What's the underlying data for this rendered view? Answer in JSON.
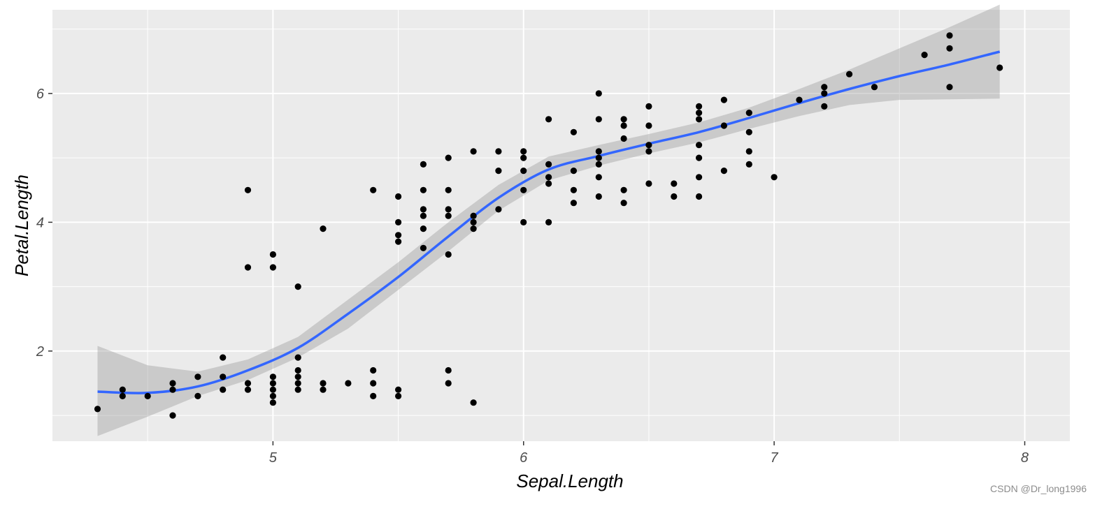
{
  "chart_data": {
    "type": "scatter",
    "xlabel": "Sepal.Length",
    "ylabel": "Petal.Length",
    "xlim": [
      4.12,
      8.18
    ],
    "ylim": [
      0.6,
      7.3
    ],
    "x_ticks": [
      5,
      6,
      7,
      8
    ],
    "y_ticks": [
      2,
      4,
      6
    ],
    "grid": true,
    "colors": {
      "panel": "#ebebeb",
      "grid": "#ffffff",
      "points": "#000000",
      "smooth": "#3366ff",
      "band": "#c6c6c6"
    },
    "points": [
      [
        4.3,
        1.1
      ],
      [
        4.4,
        1.3
      ],
      [
        4.4,
        1.4
      ],
      [
        4.5,
        1.3
      ],
      [
        4.6,
        1.0
      ],
      [
        4.6,
        1.4
      ],
      [
        4.6,
        1.5
      ],
      [
        4.7,
        1.3
      ],
      [
        4.7,
        1.6
      ],
      [
        4.8,
        1.4
      ],
      [
        4.8,
        1.6
      ],
      [
        4.8,
        1.9
      ],
      [
        4.9,
        1.4
      ],
      [
        4.9,
        1.5
      ],
      [
        4.9,
        3.3
      ],
      [
        4.9,
        4.5
      ],
      [
        5.0,
        1.2
      ],
      [
        5.0,
        1.3
      ],
      [
        5.0,
        1.4
      ],
      [
        5.0,
        1.5
      ],
      [
        5.0,
        1.6
      ],
      [
        5.0,
        3.3
      ],
      [
        5.0,
        3.5
      ],
      [
        5.1,
        1.4
      ],
      [
        5.1,
        1.5
      ],
      [
        5.1,
        1.6
      ],
      [
        5.1,
        1.7
      ],
      [
        5.1,
        1.9
      ],
      [
        5.1,
        3.0
      ],
      [
        5.2,
        1.4
      ],
      [
        5.2,
        1.5
      ],
      [
        5.2,
        3.9
      ],
      [
        5.3,
        1.5
      ],
      [
        5.4,
        1.3
      ],
      [
        5.4,
        1.5
      ],
      [
        5.4,
        1.7
      ],
      [
        5.4,
        4.5
      ],
      [
        5.5,
        1.3
      ],
      [
        5.5,
        1.4
      ],
      [
        5.5,
        3.7
      ],
      [
        5.5,
        3.8
      ],
      [
        5.5,
        4.0
      ],
      [
        5.5,
        4.4
      ],
      [
        5.6,
        3.6
      ],
      [
        5.6,
        3.9
      ],
      [
        5.6,
        4.1
      ],
      [
        5.6,
        4.2
      ],
      [
        5.6,
        4.5
      ],
      [
        5.6,
        4.9
      ],
      [
        5.7,
        1.5
      ],
      [
        5.7,
        1.7
      ],
      [
        5.7,
        3.5
      ],
      [
        5.7,
        4.1
      ],
      [
        5.7,
        4.2
      ],
      [
        5.7,
        4.5
      ],
      [
        5.7,
        5.0
      ],
      [
        5.8,
        1.2
      ],
      [
        5.8,
        3.9
      ],
      [
        5.8,
        4.0
      ],
      [
        5.8,
        4.1
      ],
      [
        5.8,
        5.1
      ],
      [
        5.9,
        4.2
      ],
      [
        5.9,
        4.8
      ],
      [
        5.9,
        5.1
      ],
      [
        6.0,
        4.0
      ],
      [
        6.0,
        4.5
      ],
      [
        6.0,
        4.8
      ],
      [
        6.0,
        5.0
      ],
      [
        6.0,
        5.1
      ],
      [
        6.1,
        4.0
      ],
      [
        6.1,
        4.6
      ],
      [
        6.1,
        4.7
      ],
      [
        6.1,
        4.9
      ],
      [
        6.1,
        5.6
      ],
      [
        6.2,
        4.3
      ],
      [
        6.2,
        4.5
      ],
      [
        6.2,
        4.8
      ],
      [
        6.2,
        5.4
      ],
      [
        6.3,
        4.4
      ],
      [
        6.3,
        4.7
      ],
      [
        6.3,
        4.9
      ],
      [
        6.3,
        5.0
      ],
      [
        6.3,
        5.1
      ],
      [
        6.3,
        5.6
      ],
      [
        6.3,
        6.0
      ],
      [
        6.4,
        4.3
      ],
      [
        6.4,
        4.5
      ],
      [
        6.4,
        5.3
      ],
      [
        6.4,
        5.5
      ],
      [
        6.4,
        5.6
      ],
      [
        6.5,
        4.6
      ],
      [
        6.5,
        5.1
      ],
      [
        6.5,
        5.2
      ],
      [
        6.5,
        5.5
      ],
      [
        6.5,
        5.8
      ],
      [
        6.6,
        4.4
      ],
      [
        6.6,
        4.6
      ],
      [
        6.7,
        4.4
      ],
      [
        6.7,
        4.7
      ],
      [
        6.7,
        5.0
      ],
      [
        6.7,
        5.2
      ],
      [
        6.7,
        5.6
      ],
      [
        6.7,
        5.7
      ],
      [
        6.7,
        5.8
      ],
      [
        6.8,
        4.8
      ],
      [
        6.8,
        5.5
      ],
      [
        6.8,
        5.9
      ],
      [
        6.9,
        4.9
      ],
      [
        6.9,
        5.1
      ],
      [
        6.9,
        5.4
      ],
      [
        6.9,
        5.7
      ],
      [
        7.0,
        4.7
      ],
      [
        7.1,
        5.9
      ],
      [
        7.2,
        5.8
      ],
      [
        7.2,
        6.0
      ],
      [
        7.2,
        6.1
      ],
      [
        7.3,
        6.3
      ],
      [
        7.4,
        6.1
      ],
      [
        7.6,
        6.6
      ],
      [
        7.7,
        6.1
      ],
      [
        7.7,
        6.7
      ],
      [
        7.7,
        6.9
      ],
      [
        7.9,
        6.4
      ]
    ],
    "smooth": {
      "x": [
        4.3,
        4.5,
        4.7,
        4.9,
        5.1,
        5.3,
        5.5,
        5.7,
        5.9,
        6.1,
        6.3,
        6.5,
        6.7,
        6.9,
        7.1,
        7.3,
        7.5,
        7.7,
        7.9
      ],
      "y": [
        1.37,
        1.35,
        1.45,
        1.7,
        2.05,
        2.58,
        3.15,
        3.78,
        4.38,
        4.82,
        5.03,
        5.22,
        5.4,
        5.62,
        5.85,
        6.07,
        6.27,
        6.45,
        6.65
      ],
      "lower": [
        0.68,
        0.98,
        1.3,
        1.55,
        1.9,
        2.35,
        2.95,
        3.55,
        4.18,
        4.65,
        4.88,
        5.07,
        5.24,
        5.45,
        5.65,
        5.82,
        5.9,
        5.91,
        5.92
      ],
      "upper": [
        2.08,
        1.78,
        1.68,
        1.87,
        2.22,
        2.8,
        3.38,
        4.0,
        4.58,
        5.02,
        5.2,
        5.37,
        5.55,
        5.78,
        6.07,
        6.37,
        6.7,
        7.03,
        7.38
      ]
    }
  },
  "watermark": "CSDN @Dr_long1996"
}
